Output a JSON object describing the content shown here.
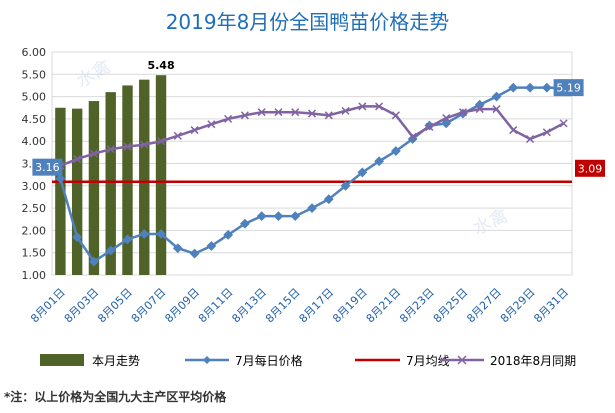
{
  "title": "2019年8月份全国鸭苗价格走势",
  "footnote": "*注：以上价格为全国九大主产区平均价格",
  "watermark": "水禽网",
  "chart_data": {
    "type": "bar+line",
    "x": [
      "8月01日",
      "8月02日",
      "8月03日",
      "8月04日",
      "8月05日",
      "8月06日",
      "8月07日",
      "8月08日",
      "8月09日",
      "8月10日",
      "8月11日",
      "8月12日",
      "8月13日",
      "8月14日",
      "8月15日",
      "8月16日",
      "8月17日",
      "8月18日",
      "8月19日",
      "8月20日",
      "8月21日",
      "8月22日",
      "8月23日",
      "8月24日",
      "8月25日",
      "8月26日",
      "8月27日",
      "8月28日",
      "8月29日",
      "8月30日",
      "8月31日"
    ],
    "xticks": [
      "8月01日",
      "8月03日",
      "8月05日",
      "8月07日",
      "8月09日",
      "8月11日",
      "8月13日",
      "8月15日",
      "8月17日",
      "8月19日",
      "8月21日",
      "8月23日",
      "8月25日",
      "8月27日",
      "8月29日",
      "8月31日"
    ],
    "ylim": [
      1.0,
      6.0
    ],
    "yticks": [
      "1.00",
      "1.50",
      "2.00",
      "2.50",
      "3.00",
      "3.50",
      "4.00",
      "4.50",
      "5.00",
      "5.50",
      "6.00"
    ],
    "grid": true,
    "legend_position": "bottom",
    "series": [
      {
        "name": "本月走势",
        "type": "bar",
        "color": "#4f6228",
        "values": [
          4.75,
          4.73,
          4.9,
          5.1,
          5.25,
          5.38,
          5.48,
          null,
          null,
          null,
          null,
          null,
          null,
          null,
          null,
          null,
          null,
          null,
          null,
          null,
          null,
          null,
          null,
          null,
          null,
          null,
          null,
          null,
          null,
          null,
          null
        ]
      },
      {
        "name": "7月每日价格",
        "type": "line",
        "color": "#4f81bd",
        "marker": "diamond",
        "values": [
          3.16,
          1.85,
          1.3,
          1.55,
          1.8,
          1.92,
          1.92,
          1.6,
          1.48,
          1.65,
          1.9,
          2.15,
          2.32,
          2.32,
          2.32,
          2.5,
          2.7,
          3.0,
          3.3,
          3.55,
          3.78,
          4.05,
          4.35,
          4.4,
          4.62,
          4.82,
          5.0,
          5.2,
          5.2,
          5.2,
          5.19
        ]
      },
      {
        "name": "7月均线",
        "type": "hline",
        "color": "#c00000",
        "value": 3.09
      },
      {
        "name": "2018年8月同期",
        "type": "line",
        "color": "#8064a2",
        "marker": "x",
        "values": [
          3.45,
          3.6,
          3.72,
          3.82,
          3.88,
          3.92,
          4.0,
          4.12,
          4.25,
          4.38,
          4.5,
          4.58,
          4.65,
          4.65,
          4.65,
          4.62,
          4.58,
          4.68,
          4.78,
          4.78,
          4.58,
          4.1,
          4.32,
          4.52,
          4.65,
          4.72,
          4.72,
          4.25,
          4.05,
          4.2,
          4.4
        ]
      }
    ],
    "annotations": [
      {
        "text": "5.48",
        "series": "本月走势",
        "index": 6,
        "style": "plain"
      },
      {
        "text": "3.16",
        "series": "7月每日价格",
        "index": 0,
        "style": "box",
        "box_color": "#4f81bd"
      },
      {
        "text": "5.19",
        "series": "7月每日价格",
        "index": 30,
        "style": "box",
        "box_color": "#4f81bd"
      },
      {
        "text": "3.09",
        "series": "7月均线",
        "index": 30,
        "style": "box",
        "box_color": "#c00000"
      }
    ]
  }
}
